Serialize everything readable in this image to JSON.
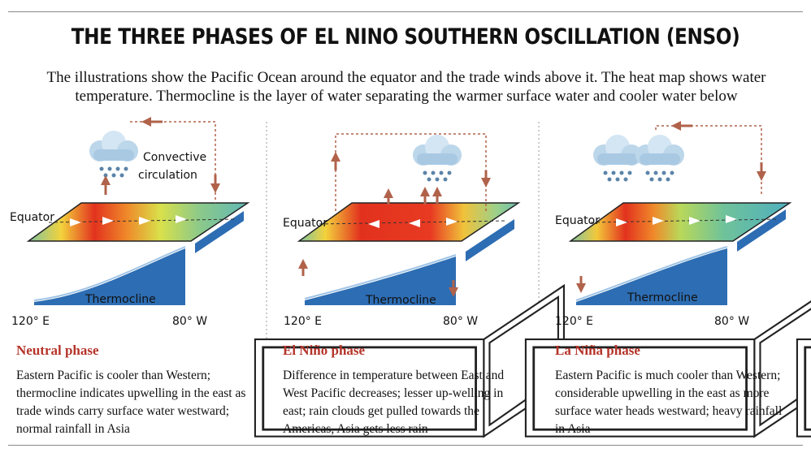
{
  "title": "THE THREE PHASES OF EL NINO SOUTHERN OSCILLATION (ENSO)",
  "subtitle": "The illustrations show the Pacific Ocean around the equator and the trade winds above it. The heat map shows water temperature. Thermocline is the layer of water separating the warmer surface water and cooler water below",
  "panels": [
    {
      "annotation": "Convective circulation",
      "equator": "Equator",
      "thermocline": "Thermocline",
      "west": "120° E",
      "east": "80° W",
      "phase": "Neutral phase",
      "description": "Eastern Pacific is cooler than Western; thermocline indicates upwelling in the east as trade winds carry surface water westward; normal rainfall in Asia"
    },
    {
      "equator": "Equator",
      "thermocline": "Thermocline",
      "west": "120° E",
      "east": "80° W",
      "phase": "El Niño phase",
      "description": "Difference in temperature between East and West Pacific decreases; lesser up-welling in east; rain clouds get pulled towards the Americas, Asia gets less rain"
    },
    {
      "equator": "Equator",
      "thermocline": "Thermocline",
      "west": "120° E",
      "east": "80° W",
      "phase": "La Niña phase",
      "description": "Eastern Pacific is much cooler than Western; considerable upwelling in the east as more surface water heads westward; heavy rainfall in Asia"
    }
  ]
}
